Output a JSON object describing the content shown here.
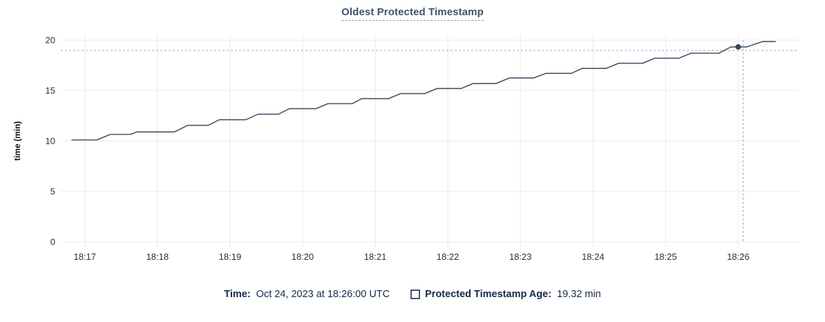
{
  "chart_data": {
    "type": "line",
    "title": "Oldest Protected Timestamp",
    "ylabel": "time (min)",
    "x_axis": {
      "tick_labels": [
        "18:17",
        "18:18",
        "18:19",
        "18:20",
        "18:21",
        "18:22",
        "18:23",
        "18:24",
        "18:25",
        "18:26"
      ],
      "tick_seconds": [
        0,
        60,
        120,
        180,
        240,
        300,
        360,
        420,
        480,
        540
      ],
      "range_seconds": [
        -17,
        590
      ]
    },
    "y_axis": {
      "tick_labels": [
        "0",
        "5",
        "10",
        "15",
        "20"
      ],
      "ticks": [
        0,
        5,
        10,
        15,
        20
      ],
      "range": [
        0,
        20
      ]
    },
    "grid": {
      "show": true
    },
    "legend_position": "bottom",
    "series": [
      {
        "name": "Protected Timestamp Age",
        "points": [
          [
            -11,
            10.1
          ],
          [
            10,
            10.1
          ],
          [
            21,
            10.65
          ],
          [
            38,
            10.65
          ],
          [
            43,
            10.9
          ],
          [
            74,
            10.9
          ],
          [
            85,
            11.55
          ],
          [
            102,
            11.55
          ],
          [
            111,
            12.1
          ],
          [
            133,
            12.1
          ],
          [
            143,
            12.65
          ],
          [
            160,
            12.65
          ],
          [
            169,
            13.2
          ],
          [
            191,
            13.2
          ],
          [
            201,
            13.7
          ],
          [
            221,
            13.7
          ],
          [
            229,
            14.2
          ],
          [
            251,
            14.2
          ],
          [
            261,
            14.7
          ],
          [
            281,
            14.7
          ],
          [
            291,
            15.2
          ],
          [
            311,
            15.2
          ],
          [
            321,
            15.7
          ],
          [
            340,
            15.7
          ],
          [
            351,
            16.25
          ],
          [
            371,
            16.25
          ],
          [
            381,
            16.7
          ],
          [
            402,
            16.7
          ],
          [
            411,
            17.2
          ],
          [
            431,
            17.2
          ],
          [
            441,
            17.7
          ],
          [
            461,
            17.7
          ],
          [
            471,
            18.2
          ],
          [
            491,
            18.2
          ],
          [
            501,
            18.7
          ],
          [
            524,
            18.7
          ],
          [
            534,
            19.32
          ],
          [
            547,
            19.32
          ],
          [
            560,
            19.85
          ],
          [
            571,
            19.85
          ]
        ]
      }
    ],
    "highlight": {
      "time_seconds": 540,
      "value": 19.32
    },
    "crosshair": {
      "x_seconds": 544,
      "hline_value": 18.97
    }
  },
  "legend": {
    "time_label": "Time:",
    "time_value": "Oct 24, 2023 at 18:26:00 UTC",
    "series_label": "Protected Timestamp Age:",
    "series_value": "19.32 min"
  },
  "colors": {
    "title": "#42506b",
    "title_underline": "#8d99af",
    "line": "#45556d",
    "dot": "#35455c",
    "crosshair": "#a3b2c2",
    "grid": "#ededed",
    "tick_text": "#2e2e2e",
    "axis_title_text": "#111111",
    "legend_text": "#13294b",
    "swatch_border": "#475872"
  }
}
